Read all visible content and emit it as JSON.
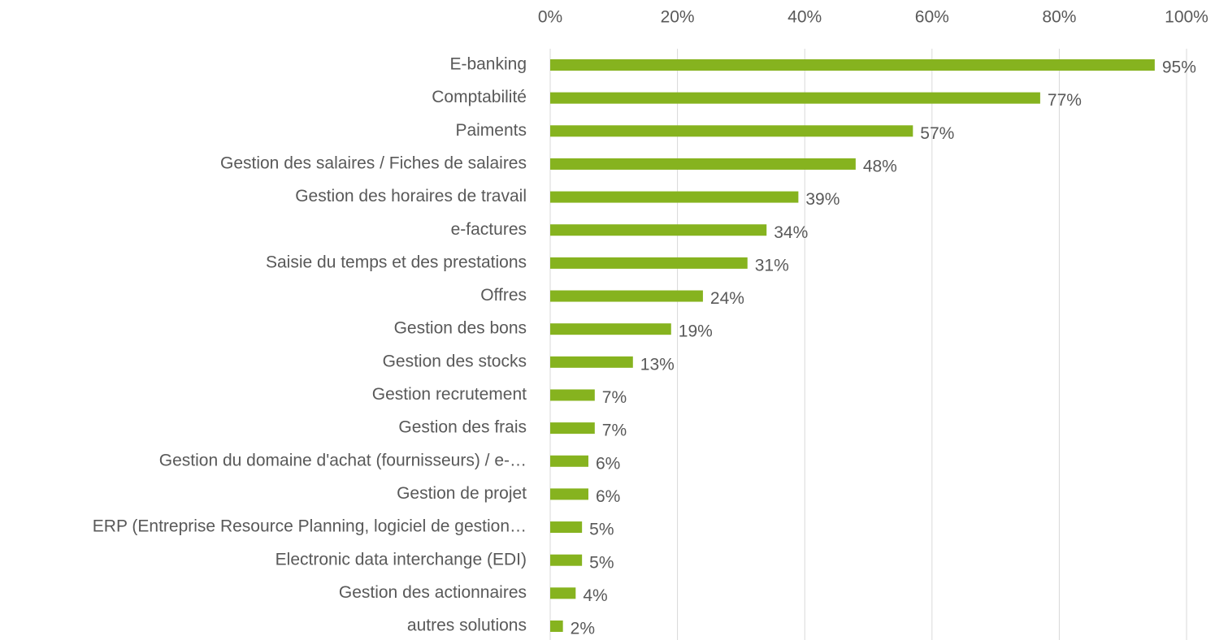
{
  "chart_data": {
    "type": "barh",
    "categories": [
      "E-banking",
      "Comptabilité",
      "Paiments",
      "Gestion des salaires / Fiches de salaires",
      "Gestion des horaires de travail",
      "e-factures",
      "Saisie du temps et des prestations",
      "Offres",
      "Gestion des bons",
      "Gestion des stocks",
      "Gestion recrutement",
      "Gestion des frais",
      "Gestion du domaine d'achat (fournisseurs) / e-…",
      "Gestion de projet",
      "ERP (Entreprise Resource Planning, logiciel de gestion…",
      "Electronic data interchange (EDI)",
      "Gestion des actionnaires",
      "autres solutions"
    ],
    "values": [
      95,
      77,
      57,
      48,
      39,
      34,
      31,
      24,
      19,
      13,
      7,
      7,
      6,
      6,
      5,
      5,
      4,
      2
    ],
    "value_labels": [
      "95%",
      "77%",
      "57%",
      "48%",
      "39%",
      "34%",
      "31%",
      "24%",
      "19%",
      "13%",
      "7%",
      "7%",
      "6%",
      "6%",
      "5%",
      "5%",
      "4%",
      "2%"
    ],
    "color": "#86b31f",
    "xlim": [
      0,
      100
    ],
    "xticks": [
      {
        "value": 0,
        "label": "0%"
      },
      {
        "value": 20,
        "label": "20%"
      },
      {
        "value": 40,
        "label": "40%"
      },
      {
        "value": 60,
        "label": "60%"
      },
      {
        "value": 80,
        "label": "80%"
      },
      {
        "value": 100,
        "label": "100%"
      }
    ],
    "grid": true
  }
}
